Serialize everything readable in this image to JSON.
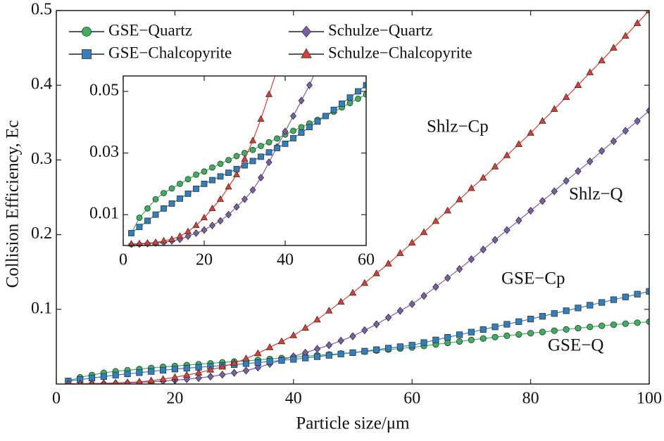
{
  "chart_data": {
    "type": "line",
    "xlabel": "Particle size/μm",
    "ylabel": "Collision Efficiency, Ec",
    "xlim": [
      0,
      100
    ],
    "ylim": [
      0,
      0.5
    ],
    "xticks": [
      0,
      20,
      40,
      60,
      80,
      100
    ],
    "yticks": [
      0.1,
      0.2,
      0.3,
      0.4,
      0.5
    ],
    "legend": "upper left",
    "annotations": [
      "Shlz−Cp",
      "Shlz−Q",
      "GSE−Cp",
      "GSE−Q"
    ],
    "inset": {
      "xlim": [
        0,
        60
      ],
      "ylim": [
        0,
        0.055
      ],
      "xticks": [
        0,
        20,
        40,
        60
      ],
      "yticks": [
        0.01,
        0.03,
        0.05
      ]
    },
    "x": [
      2,
      4,
      6,
      8,
      10,
      12,
      14,
      16,
      18,
      20,
      22,
      24,
      26,
      28,
      30,
      32,
      34,
      36,
      38,
      40,
      42,
      44,
      46,
      48,
      50,
      52,
      54,
      56,
      58,
      60,
      62,
      64,
      66,
      68,
      70,
      72,
      74,
      76,
      78,
      80,
      82,
      84,
      86,
      88,
      90,
      92,
      94,
      96,
      98,
      100
    ],
    "series": [
      {
        "name": "GSE−Quartz",
        "color": "#3cb05c",
        "marker": "circle",
        "values": [
          0.004,
          0.009,
          0.012,
          0.015,
          0.017,
          0.0185,
          0.02,
          0.0215,
          0.023,
          0.024,
          0.0253,
          0.0265,
          0.0277,
          0.029,
          0.03,
          0.031,
          0.0323,
          0.0335,
          0.0347,
          0.036,
          0.0372,
          0.0384,
          0.0396,
          0.0408,
          0.042,
          0.0434,
          0.0448,
          0.0462,
          0.0476,
          0.049,
          0.051,
          0.053,
          0.055,
          0.057,
          0.059,
          0.061,
          0.0628,
          0.0646,
          0.0664,
          0.068,
          0.0697,
          0.0714,
          0.0731,
          0.0748,
          0.0764,
          0.0779,
          0.0794,
          0.0808,
          0.0821,
          0.0834
        ]
      },
      {
        "name": "Schulze−Quartz",
        "color": "#7b5ea7",
        "marker": "diamond",
        "values": [
          0.0003,
          0.0004,
          0.0006,
          0.0008,
          0.001,
          0.0015,
          0.002,
          0.003,
          0.004,
          0.005,
          0.0065,
          0.008,
          0.01,
          0.0125,
          0.015,
          0.018,
          0.022,
          0.027,
          0.032,
          0.037,
          0.042,
          0.047,
          0.052,
          0.058,
          0.064,
          0.072,
          0.08,
          0.089,
          0.098,
          0.107,
          0.118,
          0.13,
          0.142,
          0.154,
          0.167,
          0.18,
          0.193,
          0.206,
          0.219,
          0.232,
          0.245,
          0.258,
          0.272,
          0.285,
          0.298,
          0.312,
          0.325,
          0.339,
          0.352,
          0.366
        ]
      },
      {
        "name": "GSE−Chalcopyrite",
        "color": "#2f7fc1",
        "marker": "square",
        "values": [
          0.004,
          0.006,
          0.008,
          0.01,
          0.012,
          0.0136,
          0.0152,
          0.0168,
          0.0184,
          0.02,
          0.0212,
          0.0224,
          0.0236,
          0.0248,
          0.026,
          0.0274,
          0.0288,
          0.0302,
          0.0316,
          0.033,
          0.0348,
          0.0366,
          0.0384,
          0.0402,
          0.042,
          0.044,
          0.046,
          0.048,
          0.05,
          0.052,
          0.0555,
          0.059,
          0.0625,
          0.066,
          0.0695,
          0.073,
          0.0765,
          0.08,
          0.0835,
          0.087,
          0.0907,
          0.0944,
          0.0981,
          0.1018,
          0.1055,
          0.1092,
          0.1129,
          0.1166,
          0.1203,
          0.124
        ]
      },
      {
        "name": "Schulze−Chalcopyrite",
        "color": "#e03c31",
        "marker": "triangle",
        "values": [
          0.0005,
          0.0006,
          0.0008,
          0.001,
          0.0015,
          0.002,
          0.003,
          0.0045,
          0.0065,
          0.009,
          0.012,
          0.015,
          0.019,
          0.023,
          0.028,
          0.034,
          0.041,
          0.049,
          0.057,
          0.065,
          0.075,
          0.086,
          0.098,
          0.11,
          0.122,
          0.135,
          0.148,
          0.161,
          0.175,
          0.189,
          0.203,
          0.218,
          0.232,
          0.247,
          0.262,
          0.276,
          0.291,
          0.306,
          0.321,
          0.336,
          0.352,
          0.368,
          0.384,
          0.4,
          0.417,
          0.433,
          0.45,
          0.466,
          0.483,
          0.5
        ]
      }
    ]
  }
}
